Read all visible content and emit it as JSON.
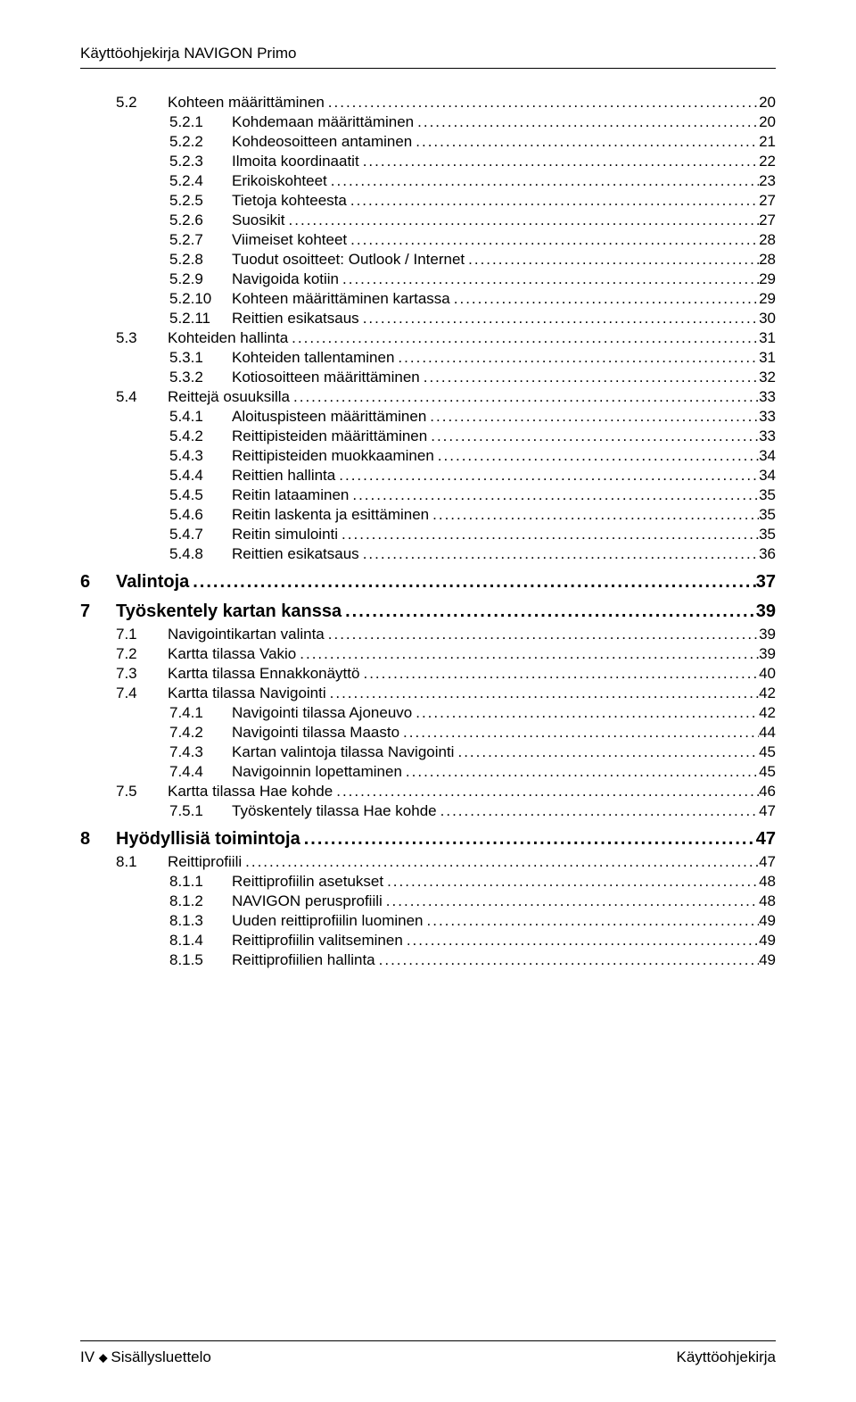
{
  "header": {
    "title": "Käyttöohjekirja NAVIGON Primo"
  },
  "toc": [
    {
      "level": "l1",
      "num": "5.2",
      "label": "Kohteen määrittäminen",
      "page": "20"
    },
    {
      "level": "l2",
      "num": "5.2.1",
      "label": "Kohdemaan määrittäminen",
      "page": "20"
    },
    {
      "level": "l2",
      "num": "5.2.2",
      "label": "Kohdeosoitteen antaminen",
      "page": "21"
    },
    {
      "level": "l2",
      "num": "5.2.3",
      "label": "Ilmoita koordinaatit",
      "page": "22"
    },
    {
      "level": "l2",
      "num": "5.2.4",
      "label": "Erikoiskohteet",
      "page": "23"
    },
    {
      "level": "l2",
      "num": "5.2.5",
      "label": "Tietoja kohteesta",
      "page": "27"
    },
    {
      "level": "l2",
      "num": "5.2.6",
      "label": "Suosikit",
      "page": "27"
    },
    {
      "level": "l2",
      "num": "5.2.7",
      "label": "Viimeiset kohteet",
      "page": "28"
    },
    {
      "level": "l2",
      "num": "5.2.8",
      "label": "Tuodut osoitteet: Outlook / Internet",
      "page": "28"
    },
    {
      "level": "l2",
      "num": "5.2.9",
      "label": "Navigoida kotiin",
      "page": "29"
    },
    {
      "level": "l2",
      "num": "5.2.10",
      "label": "Kohteen määrittäminen kartassa",
      "page": "29"
    },
    {
      "level": "l2",
      "num": "5.2.11",
      "label": "Reittien esikatsaus",
      "page": "30"
    },
    {
      "level": "l1",
      "num": "5.3",
      "label": "Kohteiden hallinta",
      "page": "31"
    },
    {
      "level": "l2",
      "num": "5.3.1",
      "label": "Kohteiden tallentaminen",
      "page": "31"
    },
    {
      "level": "l2",
      "num": "5.3.2",
      "label": "Kotiosoitteen määrittäminen",
      "page": "32"
    },
    {
      "level": "l1",
      "num": "5.4",
      "label": "Reittejä osuuksilla",
      "page": "33"
    },
    {
      "level": "l2",
      "num": "5.4.1",
      "label": "Aloituspisteen määrittäminen",
      "page": "33"
    },
    {
      "level": "l2",
      "num": "5.4.2",
      "label": "Reittipisteiden määrittäminen",
      "page": "33"
    },
    {
      "level": "l2",
      "num": "5.4.3",
      "label": "Reittipisteiden muokkaaminen",
      "page": "34"
    },
    {
      "level": "l2",
      "num": "5.4.4",
      "label": "Reittien hallinta",
      "page": "34"
    },
    {
      "level": "l2",
      "num": "5.4.5",
      "label": "Reitin lataaminen",
      "page": "35"
    },
    {
      "level": "l2",
      "num": "5.4.6",
      "label": "Reitin laskenta ja esittäminen",
      "page": "35"
    },
    {
      "level": "l2",
      "num": "5.4.7",
      "label": "Reitin simulointi",
      "page": "35"
    },
    {
      "level": "l2",
      "num": "5.4.8",
      "label": "Reittien esikatsaus",
      "page": "36"
    },
    {
      "level": "chap",
      "num": "6",
      "label": "Valintoja",
      "page": "37"
    },
    {
      "level": "chap",
      "num": "7",
      "label": "Työskentely kartan kanssa",
      "page": "39"
    },
    {
      "level": "l1",
      "num": "7.1",
      "label": "Navigointikartan valinta",
      "page": "39"
    },
    {
      "level": "l1",
      "num": "7.2",
      "label": "Kartta tilassa Vakio",
      "page": "39"
    },
    {
      "level": "l1",
      "num": "7.3",
      "label": "Kartta tilassa Ennakkonäyttö",
      "page": "40"
    },
    {
      "level": "l1",
      "num": "7.4",
      "label": "Kartta tilassa Navigointi",
      "page": "42"
    },
    {
      "level": "l2",
      "num": "7.4.1",
      "label": "Navigointi tilassa Ajoneuvo",
      "page": "42"
    },
    {
      "level": "l2",
      "num": "7.4.2",
      "label": "Navigointi tilassa Maasto",
      "page": "44"
    },
    {
      "level": "l2",
      "num": "7.4.3",
      "label": "Kartan valintoja tilassa Navigointi",
      "page": "45"
    },
    {
      "level": "l2",
      "num": "7.4.4",
      "label": "Navigoinnin lopettaminen",
      "page": "45"
    },
    {
      "level": "l1",
      "num": "7.5",
      "label": "Kartta tilassa Hae kohde",
      "page": "46"
    },
    {
      "level": "l2",
      "num": "7.5.1",
      "label": "Työskentely tilassa Hae kohde",
      "page": "47"
    },
    {
      "level": "chap",
      "num": "8",
      "label": "Hyödyllisiä toimintoja",
      "page": "47"
    },
    {
      "level": "l1",
      "num": "8.1",
      "label": "Reittiprofiili",
      "page": "47"
    },
    {
      "level": "l2",
      "num": "8.1.1",
      "label": "Reittiprofiilin asetukset",
      "page": "48"
    },
    {
      "level": "l2",
      "num": "8.1.2",
      "label": "NAVIGON perusprofiili",
      "page": "48"
    },
    {
      "level": "l2",
      "num": "8.1.3",
      "label": "Uuden reittiprofiilin luominen",
      "page": "49"
    },
    {
      "level": "l2",
      "num": "8.1.4",
      "label": "Reittiprofiilin valitseminen",
      "page": "49"
    },
    {
      "level": "l2",
      "num": "8.1.5",
      "label": "Reittiprofiilien hallinta",
      "page": "49"
    }
  ],
  "footer": {
    "left_num": "IV",
    "left_label": "Sisällysluettelo",
    "right": "Käyttöohjekirja"
  }
}
